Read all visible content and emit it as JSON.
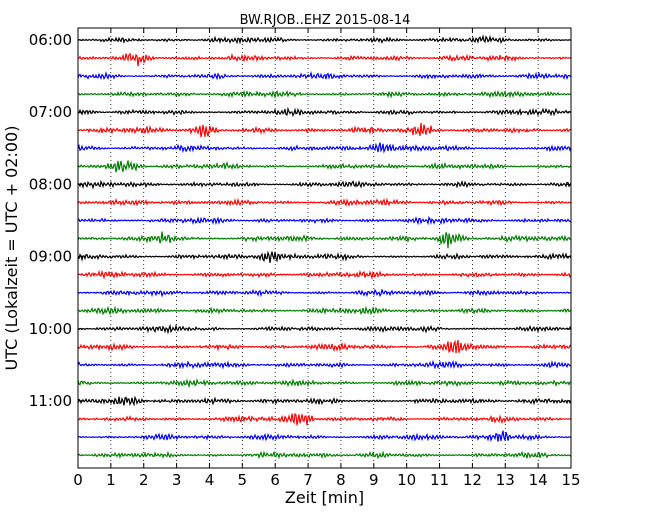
{
  "chart_data": {
    "type": "line",
    "title": "BW.RJOB..EHZ 2015-08-14",
    "xlabel": "Zeit  [min]",
    "ylabel": "UTC (Lokalzeit = UTC + 02:00)",
    "xlim": [
      0,
      15
    ],
    "x_ticks": [
      "0",
      "1",
      "2",
      "3",
      "4",
      "5",
      "6",
      "7",
      "8",
      "9",
      "10",
      "11",
      "12",
      "13",
      "14",
      "15"
    ],
    "y_ticks": [
      "06:00",
      "07:00",
      "08:00",
      "09:00",
      "10:00",
      "11:00"
    ],
    "grid": "vertical dotted",
    "trace_start": "06:00",
    "trace_interval_minutes": 15,
    "trace_count": 24,
    "trace_colors": [
      "#000000",
      "#ff0000",
      "#0000ff",
      "#008000"
    ],
    "bursts": [
      {
        "trace": 1,
        "minute": 1.8,
        "amp": 1.6
      },
      {
        "trace": 5,
        "minute": 3.8,
        "amp": 1.8
      },
      {
        "trace": 5,
        "minute": 10.5,
        "amp": 1.7
      },
      {
        "trace": 6,
        "minute": 9.2,
        "amp": 1.6
      },
      {
        "trace": 7,
        "minute": 1.4,
        "amp": 1.6
      },
      {
        "trace": 11,
        "minute": 11.3,
        "amp": 2.6
      },
      {
        "trace": 11,
        "minute": 2.6,
        "amp": 1.6
      },
      {
        "trace": 12,
        "minute": 5.8,
        "amp": 1.7
      },
      {
        "trace": 17,
        "minute": 11.5,
        "amp": 1.7
      },
      {
        "trace": 20,
        "minute": 1.5,
        "amp": 1.7
      },
      {
        "trace": 21,
        "minute": 6.8,
        "amp": 1.9
      },
      {
        "trace": 22,
        "minute": 12.8,
        "amp": 1.6
      }
    ]
  }
}
